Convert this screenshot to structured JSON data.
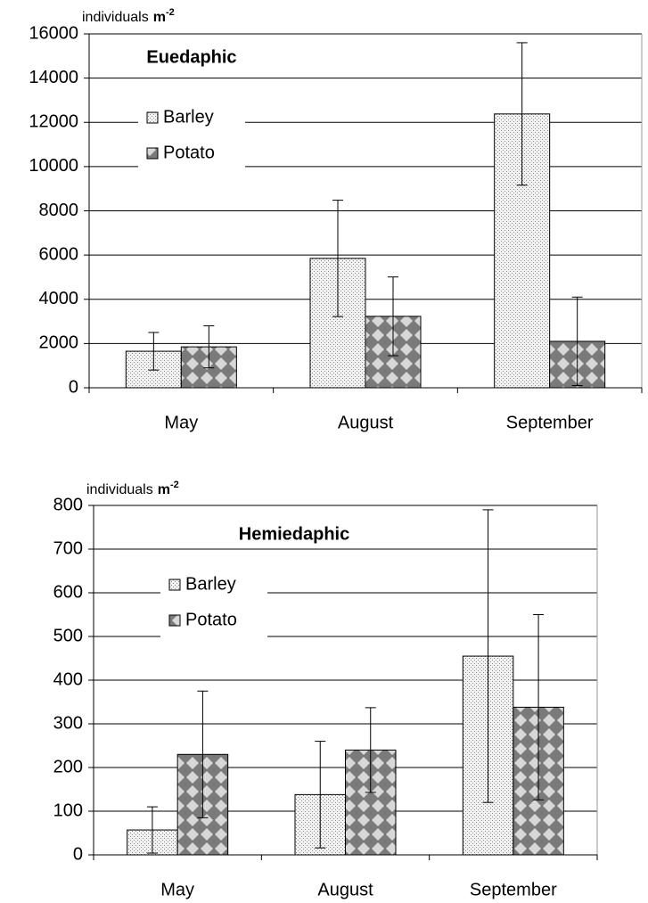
{
  "chart_data": [
    {
      "type": "bar",
      "title": "Euedaphic",
      "y_label": "individuals",
      "y_label_unit": "m",
      "y_label_exponent": "-2",
      "categories": [
        "May",
        "August",
        "September"
      ],
      "series": [
        {
          "name": "Barley",
          "color": "#d9d9d9",
          "values": [
            1650,
            5850,
            12380
          ],
          "errors": [
            850,
            2630,
            3220
          ]
        },
        {
          "name": "Potato",
          "color": "#808080",
          "values": [
            1850,
            3230,
            2100
          ],
          "errors": [
            950,
            1780,
            2000
          ]
        }
      ],
      "ylim": [
        0,
        16000
      ],
      "yticks": [
        0,
        2000,
        4000,
        6000,
        8000,
        10000,
        12000,
        14000,
        16000
      ],
      "grid": true,
      "legend": "upper left"
    },
    {
      "type": "bar",
      "title": "Hemiedaphic",
      "y_label": "individuals",
      "y_label_unit": "m",
      "y_label_exponent": "-2",
      "categories": [
        "May",
        "August",
        "September"
      ],
      "series": [
        {
          "name": "Barley",
          "color": "#d9d9d9",
          "values": [
            57,
            138,
            455
          ],
          "errors": [
            53,
            122,
            335
          ]
        },
        {
          "name": "Potato",
          "color": "#808080",
          "values": [
            230,
            240,
            338
          ],
          "errors": [
            145,
            97,
            212
          ]
        }
      ],
      "ylim": [
        0,
        800
      ],
      "yticks": [
        0,
        100,
        200,
        300,
        400,
        500,
        600,
        700,
        800
      ],
      "grid": true,
      "legend": "upper left"
    }
  ]
}
